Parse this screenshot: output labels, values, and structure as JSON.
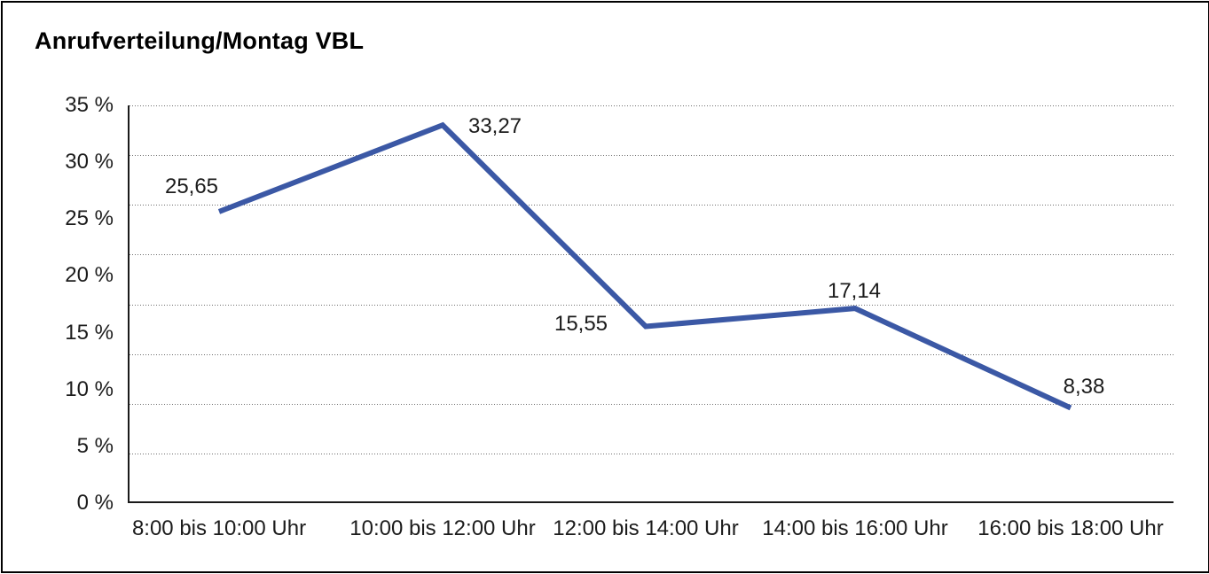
{
  "chart_data": {
    "type": "line",
    "title": "Anrufverteilung/Montag VBL",
    "categories": [
      "8:00 bis 10:00 Uhr",
      "10:00 bis 12:00 Uhr",
      "12:00 bis 14:00 Uhr",
      "14:00 bis 16:00 Uhr",
      "16:00 bis 18:00 Uhr"
    ],
    "values": [
      25.65,
      33.27,
      15.55,
      17.14,
      8.38
    ],
    "point_labels": [
      "25,65",
      "33,27",
      "15,55",
      "17,14",
      "8,38"
    ],
    "ytick_labels": [
      "35 %",
      "30 %",
      "25 %",
      "20 %",
      "15 %",
      "10 %",
      "5 %",
      "0 %"
    ],
    "ytick_values": [
      35,
      30,
      25,
      20,
      15,
      10,
      5,
      0
    ],
    "ylim": [
      0,
      35
    ],
    "xlabel": "",
    "ylabel": "",
    "legend": "none",
    "grid": "horizontal-dotted",
    "gridline_count": 9,
    "line_color": "#3B58A5",
    "axis_color": "#1a1a1a",
    "text_color": "#1c1c1c",
    "background_color": "#ffffff"
  }
}
